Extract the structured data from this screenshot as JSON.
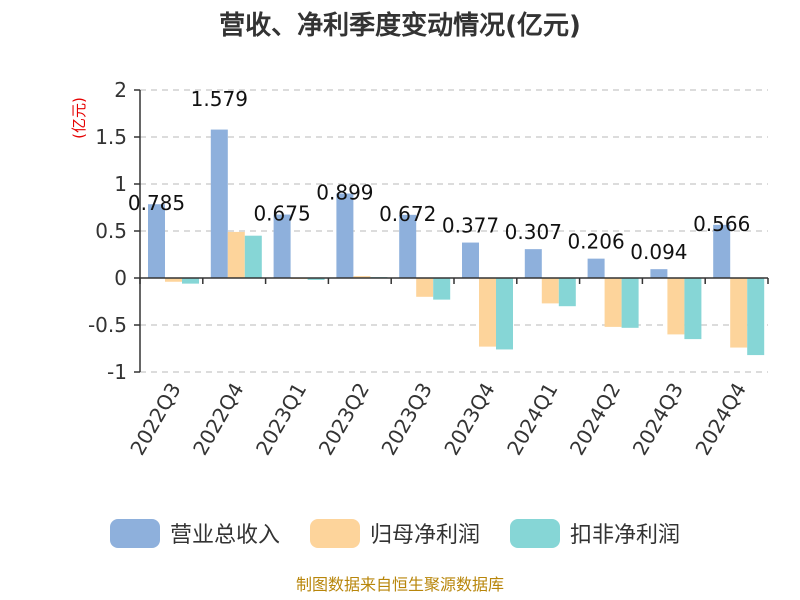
{
  "chart_data": {
    "type": "bar",
    "title": "营收、净利季度变动情况(亿元)",
    "ylabel": "(亿元)",
    "ylim": [
      -1,
      2
    ],
    "yticks": [
      2,
      1.5,
      1,
      0.5,
      0,
      -0.5,
      -1
    ],
    "ytick_labels": [
      "2",
      "1.5",
      "1",
      "0.5",
      "0",
      "-0.5",
      "-1"
    ],
    "grid": true,
    "legend_position": "bottom",
    "categories": [
      "2022Q3",
      "2022Q4",
      "2023Q1",
      "2023Q2",
      "2023Q3",
      "2023Q4",
      "2024Q1",
      "2024Q2",
      "2024Q3",
      "2024Q4"
    ],
    "series": [
      {
        "name": "营业总收入",
        "color": "#8eb0dc",
        "values": [
          0.785,
          1.579,
          0.675,
          0.899,
          0.672,
          0.377,
          0.307,
          0.206,
          0.094,
          0.566
        ],
        "labels": [
          "0.785",
          "1.579",
          "0.675",
          "0.899",
          "0.672",
          "0.377",
          "0.307",
          "0.206",
          "0.094",
          "0.566"
        ]
      },
      {
        "name": "归母净利润",
        "color": "#fdd49b",
        "values": [
          -0.04,
          0.49,
          -0.01,
          0.02,
          -0.2,
          -0.73,
          -0.27,
          -0.52,
          -0.6,
          -0.74
        ],
        "labels": null
      },
      {
        "name": "扣非净利润",
        "color": "#86d6d6",
        "values": [
          -0.06,
          0.45,
          -0.02,
          0.01,
          -0.23,
          -0.76,
          -0.3,
          -0.53,
          -0.65,
          -0.82
        ],
        "labels": null
      }
    ],
    "source": "制图数据来自恒生聚源数据库"
  }
}
